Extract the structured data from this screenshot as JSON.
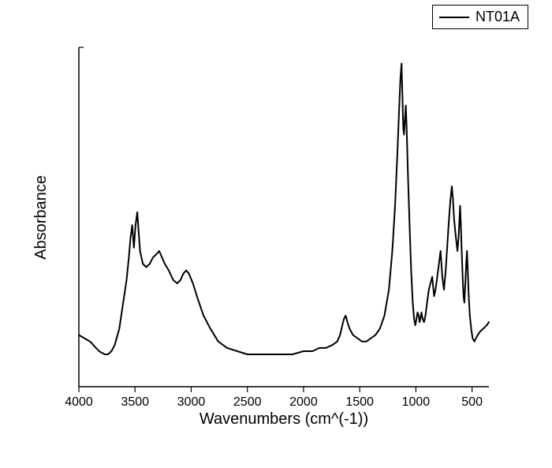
{
  "chart": {
    "type": "line",
    "legend": {
      "label": "NT01A",
      "line_color": "#000000",
      "border_color": "#000000"
    },
    "x_axis": {
      "title": "Wavenumbers (cm^(-1))",
      "reversed": true,
      "min": 350,
      "max": 4000,
      "ticks": [
        4000,
        3500,
        3000,
        2500,
        2000,
        1500,
        1000,
        500
      ],
      "label_fontsize": 16,
      "title_fontsize": 20
    },
    "y_axis": {
      "title": "Absorbance",
      "min": 0,
      "max": 105,
      "show_ticks": false,
      "title_fontsize": 20
    },
    "line_color": "#000000",
    "line_width": 2,
    "background_color": "#ffffff",
    "points": [
      [
        4000,
        16
      ],
      [
        3900,
        14
      ],
      [
        3820,
        11
      ],
      [
        3770,
        10
      ],
      [
        3740,
        10
      ],
      [
        3710,
        11
      ],
      [
        3680,
        13
      ],
      [
        3640,
        18
      ],
      [
        3610,
        25
      ],
      [
        3575,
        33
      ],
      [
        3555,
        40
      ],
      [
        3540,
        46
      ],
      [
        3525,
        50
      ],
      [
        3510,
        43
      ],
      [
        3495,
        50
      ],
      [
        3480,
        54
      ],
      [
        3468,
        48
      ],
      [
        3455,
        42
      ],
      [
        3430,
        38
      ],
      [
        3400,
        37
      ],
      [
        3370,
        38
      ],
      [
        3340,
        40
      ],
      [
        3310,
        41
      ],
      [
        3285,
        42
      ],
      [
        3260,
        40
      ],
      [
        3235,
        38
      ],
      [
        3200,
        36
      ],
      [
        3160,
        33
      ],
      [
        3125,
        32
      ],
      [
        3095,
        33
      ],
      [
        3070,
        35
      ],
      [
        3045,
        36
      ],
      [
        3020,
        35
      ],
      [
        2985,
        32
      ],
      [
        2940,
        27
      ],
      [
        2890,
        22
      ],
      [
        2830,
        18
      ],
      [
        2760,
        14
      ],
      [
        2680,
        12
      ],
      [
        2590,
        11
      ],
      [
        2500,
        10
      ],
      [
        2400,
        10
      ],
      [
        2300,
        10
      ],
      [
        2200,
        10
      ],
      [
        2100,
        10
      ],
      [
        2000,
        11
      ],
      [
        1920,
        11
      ],
      [
        1860,
        12
      ],
      [
        1800,
        12
      ],
      [
        1740,
        13
      ],
      [
        1700,
        14
      ],
      [
        1675,
        16
      ],
      [
        1655,
        19
      ],
      [
        1640,
        21
      ],
      [
        1625,
        22
      ],
      [
        1610,
        20
      ],
      [
        1590,
        18
      ],
      [
        1560,
        16
      ],
      [
        1520,
        15
      ],
      [
        1480,
        14
      ],
      [
        1440,
        14
      ],
      [
        1400,
        15
      ],
      [
        1360,
        16
      ],
      [
        1320,
        18
      ],
      [
        1280,
        22
      ],
      [
        1240,
        30
      ],
      [
        1210,
        42
      ],
      [
        1185,
        56
      ],
      [
        1165,
        72
      ],
      [
        1150,
        85
      ],
      [
        1138,
        95
      ],
      [
        1128,
        100
      ],
      [
        1120,
        90
      ],
      [
        1112,
        80
      ],
      [
        1105,
        78
      ],
      [
        1097,
        83
      ],
      [
        1090,
        87
      ],
      [
        1082,
        80
      ],
      [
        1070,
        65
      ],
      [
        1056,
        50
      ],
      [
        1042,
        36
      ],
      [
        1028,
        26
      ],
      [
        1016,
        21
      ],
      [
        1005,
        19
      ],
      [
        995,
        21
      ],
      [
        985,
        23
      ],
      [
        975,
        22
      ],
      [
        968,
        20
      ],
      [
        960,
        21
      ],
      [
        950,
        23
      ],
      [
        940,
        21
      ],
      [
        928,
        20
      ],
      [
        915,
        22
      ],
      [
        900,
        26
      ],
      [
        885,
        30
      ],
      [
        870,
        32
      ],
      [
        855,
        34
      ],
      [
        838,
        28
      ],
      [
        825,
        30
      ],
      [
        810,
        34
      ],
      [
        795,
        38
      ],
      [
        780,
        42
      ],
      [
        765,
        34
      ],
      [
        750,
        30
      ],
      [
        735,
        36
      ],
      [
        720,
        44
      ],
      [
        705,
        52
      ],
      [
        692,
        58
      ],
      [
        680,
        62
      ],
      [
        670,
        58
      ],
      [
        660,
        52
      ],
      [
        650,
        48
      ],
      [
        640,
        45
      ],
      [
        630,
        42
      ],
      [
        620,
        46
      ],
      [
        612,
        52
      ],
      [
        606,
        56
      ],
      [
        600,
        50
      ],
      [
        592,
        42
      ],
      [
        584,
        34
      ],
      [
        576,
        28
      ],
      [
        568,
        26
      ],
      [
        560,
        32
      ],
      [
        552,
        38
      ],
      [
        545,
        42
      ],
      [
        538,
        36
      ],
      [
        530,
        28
      ],
      [
        520,
        22
      ],
      [
        508,
        18
      ],
      [
        495,
        15
      ],
      [
        480,
        14
      ],
      [
        465,
        15
      ],
      [
        450,
        16
      ],
      [
        430,
        17
      ],
      [
        400,
        18
      ],
      [
        370,
        19
      ],
      [
        350,
        20
      ]
    ]
  }
}
